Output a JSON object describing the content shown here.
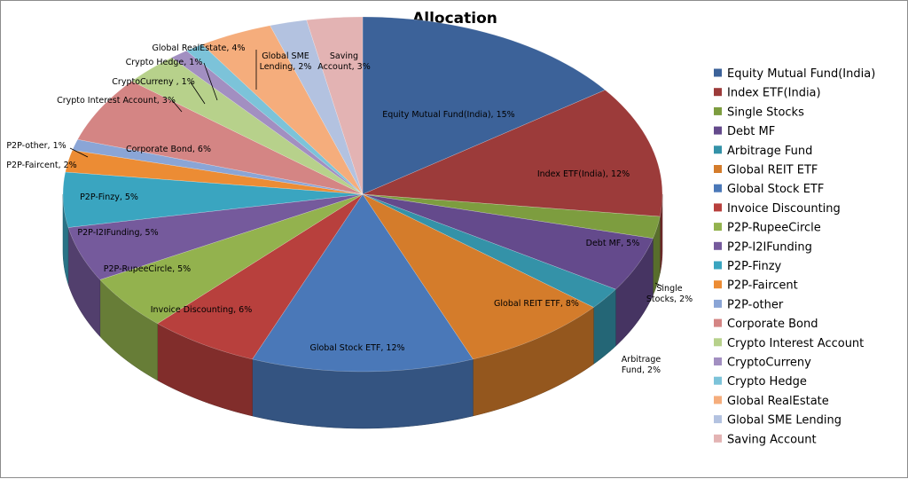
{
  "chart_data": {
    "type": "pie",
    "title": "Allocation",
    "legend_position": "right",
    "label_format": "{name}, {value}%",
    "slices": [
      {
        "name": "Equity Mutual Fund(India)",
        "value": 15,
        "color": "#3c6299"
      },
      {
        "name": "Index ETF(India)",
        "value": 12,
        "color": "#9c3b3a"
      },
      {
        "name": "Single Stocks",
        "value": 2,
        "color": "#7d9d3f"
      },
      {
        "name": "Debt MF",
        "value": 5,
        "color": "#644a8c"
      },
      {
        "name": "Arbitrage Fund",
        "value": 2,
        "color": "#3492a8"
      },
      {
        "name": "Global REIT ETF",
        "value": 8,
        "color": "#d47c2b"
      },
      {
        "name": "Global  Stock ETF",
        "value": 12,
        "color": "#4a78b8"
      },
      {
        "name": "Invoice Discounting",
        "value": 6,
        "color": "#b8403d"
      },
      {
        "name": "P2P-RupeeCircle",
        "value": 5,
        "color": "#93b24e"
      },
      {
        "name": "P2P-I2IFunding",
        "value": 5,
        "color": "#755a9c"
      },
      {
        "name": "P2P-Finzy",
        "value": 5,
        "color": "#3aa5c0"
      },
      {
        "name": "P2P-Faircent",
        "value": 2,
        "color": "#ec8c34"
      },
      {
        "name": "P2P-other",
        "value": 1,
        "color": "#8aa5d6"
      },
      {
        "name": "Corporate Bond",
        "value": 6,
        "color": "#d48584"
      },
      {
        "name": "Crypto Interest Account",
        "value": 3,
        "color": "#b7d18b"
      },
      {
        "name": "CryptoCurreny",
        "value": 1,
        "color": "#a28fc1"
      },
      {
        "name": "Crypto Hedge",
        "value": 1,
        "color": "#7cc3d9"
      },
      {
        "name": "Global RealEstate",
        "value": 4,
        "color": "#f5ad7c"
      },
      {
        "name": "Global SME Lending",
        "value": 2,
        "color": "#b3c2e0"
      },
      {
        "name": "Saving Account",
        "value": 3,
        "color": "#e3b3b3"
      }
    ],
    "data_labels": [
      {
        "lines": [
          "Equity Mutual Fund(India), 15%"
        ]
      },
      {
        "lines": [
          "Index ETF(India), 12%"
        ]
      },
      {
        "lines": [
          "Single",
          "Stocks, 2%"
        ]
      },
      {
        "lines": [
          "Debt MF, 5%"
        ]
      },
      {
        "lines": [
          "Arbitrage",
          "Fund, 2%"
        ]
      },
      {
        "lines": [
          "Global REIT  ETF, 8%"
        ]
      },
      {
        "lines": [
          "Global  Stock ETF, 12%"
        ]
      },
      {
        "lines": [
          "Invoice Discounting, 6%"
        ]
      },
      {
        "lines": [
          "P2P-RupeeCircle, 5%"
        ]
      },
      {
        "lines": [
          "P2P-I2IFunding, 5%"
        ]
      },
      {
        "lines": [
          "P2P-Finzy, 5%"
        ]
      },
      {
        "lines": [
          "P2P-Faircent, 2%"
        ]
      },
      {
        "lines": [
          "P2P-other, 1%"
        ]
      },
      {
        "lines": [
          "Corporate Bond, 6%"
        ]
      },
      {
        "lines": [
          "Crypto Interest Account, 3%"
        ]
      },
      {
        "lines": [
          "CryptoCurreny , 1%"
        ]
      },
      {
        "lines": [
          "Crypto Hedge, 1%"
        ]
      },
      {
        "lines": [
          "Global RealEstate,  4%"
        ]
      },
      {
        "lines": [
          "Global SME",
          "Lending, 2%"
        ]
      },
      {
        "lines": [
          "Saving",
          "Account, 3%"
        ]
      }
    ]
  }
}
